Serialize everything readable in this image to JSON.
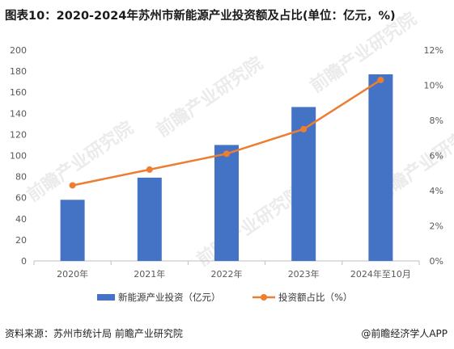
{
  "title": "图表10：2020-2024年苏州市新能源产业投资额及占比(单位：亿元，%)",
  "footer": {
    "source": "资料来源：苏州市统计局 前瞻产业研究院",
    "brand": "@前瞻经济学人APP"
  },
  "watermark": "前瞻产业研究院",
  "chart_data": {
    "type": "bar+line",
    "categories": [
      "2020年",
      "2021年",
      "2022年",
      "2023年",
      "2024年至10月"
    ],
    "series": [
      {
        "name": "新能源产业投资（亿元）",
        "type": "bar",
        "axis": "left",
        "color": "#4472C4",
        "values": [
          58,
          79,
          110,
          146,
          177
        ]
      },
      {
        "name": "投资额占比（%）",
        "type": "line",
        "axis": "right",
        "color": "#ED7D31",
        "values": [
          4.3,
          5.2,
          6.1,
          7.5,
          10.3
        ]
      }
    ],
    "y_left": {
      "min": 0,
      "max": 200,
      "step": 20
    },
    "y_right": {
      "min": 0,
      "max": 12,
      "step": 2,
      "suffix": "%"
    },
    "grid": false,
    "legend_position": "bottom"
  }
}
